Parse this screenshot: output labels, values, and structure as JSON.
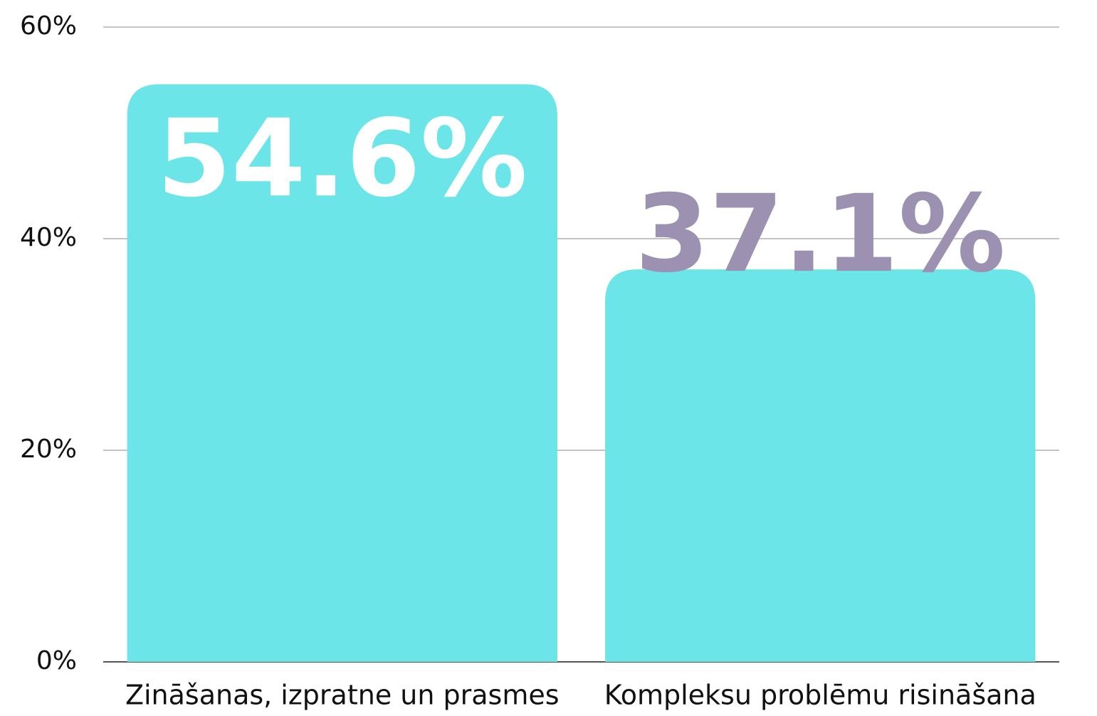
{
  "chart_data": {
    "type": "bar",
    "categories": [
      "Zināšanas, izpratne un prasmes",
      "Kompleksu problēmu risināšana"
    ],
    "values": [
      54.6,
      37.1
    ],
    "value_labels": [
      "54.6%",
      "37.1%"
    ],
    "value_label_colors": [
      "#ffffff",
      "#9c91b0"
    ],
    "color": "#6ce5e8",
    "ylim": [
      0,
      60
    ],
    "yticks": [
      {
        "value": 0,
        "label": "0%"
      },
      {
        "value": 20,
        "label": "20%"
      },
      {
        "value": 40,
        "label": "40%"
      },
      {
        "value": 60,
        "label": "60%"
      }
    ],
    "grid": true
  }
}
